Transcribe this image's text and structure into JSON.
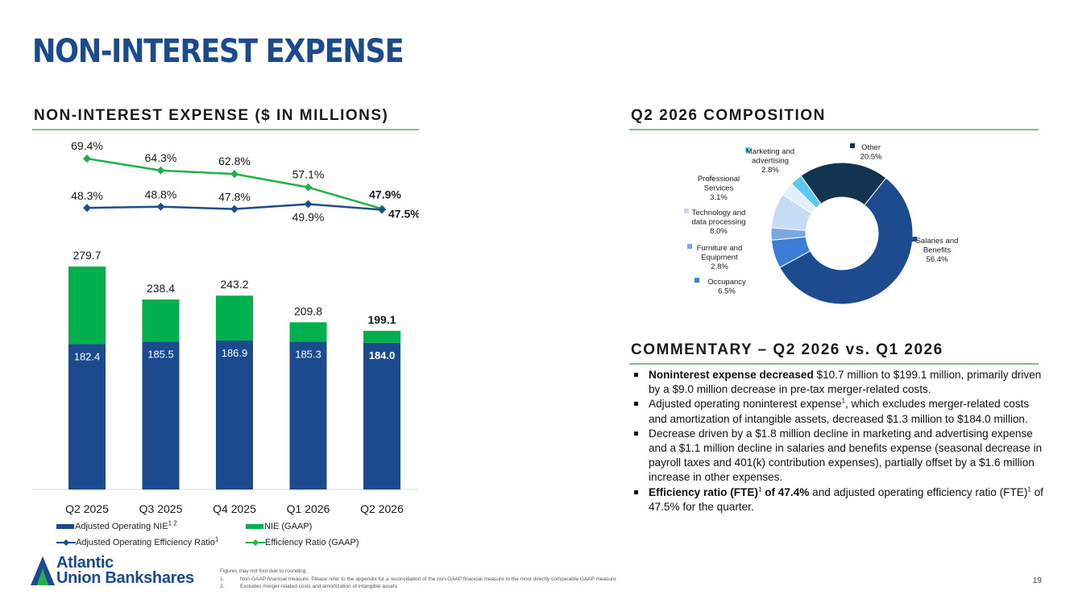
{
  "page": {
    "title": "NON-INTEREST EXPENSE",
    "page_number": "19"
  },
  "left_section": {
    "title": "NON-INTEREST EXPENSE ($ IN MILLIONS)"
  },
  "right_top_section": {
    "title": "Q2 2026 COMPOSITION"
  },
  "commentary": {
    "title": "COMMENTARY – Q2 2026 vs. Q1 2026",
    "bullets": [
      {
        "bold": "Noninterest expense decreased",
        "sup": "",
        "bold2": "",
        "text": " $10.7 million to $199.1 million, primarily driven by a $9.0 million decrease in pre-tax merger-related costs."
      },
      {
        "bold": "",
        "text_a": "Adjusted operating noninterest expense",
        "sup": "1",
        "text": ", which excludes merger-related costs and amortization of intangible assets, decreased $1.3 million to $184.0 million."
      },
      {
        "bold": "",
        "text_a": "Decrease driven by a $1.8 million decline in marketing and advertising expense and a $1.1 million decline in salaries and benefits expense (seasonal decrease in payroll taxes and 401(k) contribution expenses), partially offset by a $1.6 million increase in other expenses.",
        "sup": "",
        "text": ""
      },
      {
        "bold": "Efficiency ratio (FTE)",
        "sup": "1",
        "bold2": " of 47.4%",
        "text": " and adjusted operating efficiency ratio (FTE)",
        "sup2": "1",
        "text2": " of 47.5% for the quarter."
      }
    ]
  },
  "legend": {
    "adj_nie": "Adjusted Operating NIE",
    "adj_nie_sup": "1 2",
    "nie_gaap": "NIE (GAAP)",
    "adj_eff": "Adjusted Operating Efficiency Ratio",
    "adj_eff_sup": "1",
    "eff_gaap": "Efficiency Ratio (GAAP)"
  },
  "colors": {
    "brand_blue": "#1b4a8e",
    "bar_green": "#00b04f",
    "line_green": "#1fb24a",
    "line_blue": "#1f4e8c",
    "rule_green": "#7dbf8e"
  },
  "footer": {
    "logo_line1": "Atlantic",
    "logo_line2": "Union Bankshares",
    "note0": "Figures may not foot due to rounding.",
    "note1_num": "1.",
    "note1": "Non-GAAP financial measure. Please refer to the appendix for a reconciliation of the non-GAAP financial measure to the most directly comparable GAAP measure",
    "note2_num": "2.",
    "note2": "Excludes merger-related costs and amortization of intangible assets"
  },
  "chart_data": [
    {
      "type": "bar",
      "stacked": true,
      "categories": [
        "Q2 2025",
        "Q3 2025",
        "Q4 2025",
        "Q1 2026",
        "Q2 2026"
      ],
      "series": [
        {
          "name": "Adjusted Operating NIE",
          "values": [
            182.4,
            185.5,
            186.9,
            185.3,
            184.0
          ],
          "color": "#1b4a8e"
        },
        {
          "name": "NIE (GAAP)",
          "values": [
            97.3,
            52.9,
            56.3,
            24.5,
            15.1
          ],
          "color": "#00b04f"
        }
      ],
      "totals": [
        279.7,
        238.4,
        243.2,
        209.8,
        199.1
      ],
      "total_labels": [
        "279.7",
        "238.4",
        "243.2",
        "209.8",
        "199.1"
      ],
      "base_labels": [
        "182.4",
        "185.5",
        "186.9",
        "185.3",
        "184.0"
      ],
      "ylim": [
        0,
        300
      ],
      "lines": [
        {
          "name": "Efficiency Ratio (GAAP)",
          "values": [
            69.4,
            64.3,
            62.8,
            57.1,
            47.9
          ],
          "labels": [
            "69.4%",
            "64.3%",
            "62.8%",
            "57.1%",
            "47.9%"
          ],
          "color": "#1fb24a"
        },
        {
          "name": "Adjusted Operating Efficiency Ratio",
          "values": [
            48.3,
            48.8,
            47.8,
            49.9,
            47.5
          ],
          "labels": [
            "48.3%",
            "48.8%",
            "47.8%",
            "49.9%",
            "47.5%"
          ],
          "color": "#1f4e8c"
        }
      ],
      "legend_position": "bottom"
    },
    {
      "type": "pie",
      "donut": true,
      "title": "Q2 2026 COMPOSITION",
      "slices": [
        {
          "label": "Salaries and Benefits",
          "value": 56.4,
          "value_label": "56.4%",
          "color": "#1c4b8f"
        },
        {
          "label": "Occupancy",
          "value": 6.5,
          "value_label": "6.5%",
          "color": "#3b7ed6"
        },
        {
          "label": "Furniture and Equipment",
          "value": 2.8,
          "value_label": "2.8%",
          "color": "#7ba7e0"
        },
        {
          "label": "Technology and data processing",
          "value": 8.0,
          "value_label": "8.0%",
          "color": "#c7dcf4"
        },
        {
          "label": "Professional Services",
          "value": 3.1,
          "value_label": "3.1%",
          "color": "#e2eef9"
        },
        {
          "label": "Marketing and advertising",
          "value": 2.8,
          "value_label": "2.8%",
          "color": "#5cc7ef"
        },
        {
          "label": "Other",
          "value": 20.5,
          "value_label": "20.5%",
          "color": "#12344e"
        }
      ]
    }
  ]
}
